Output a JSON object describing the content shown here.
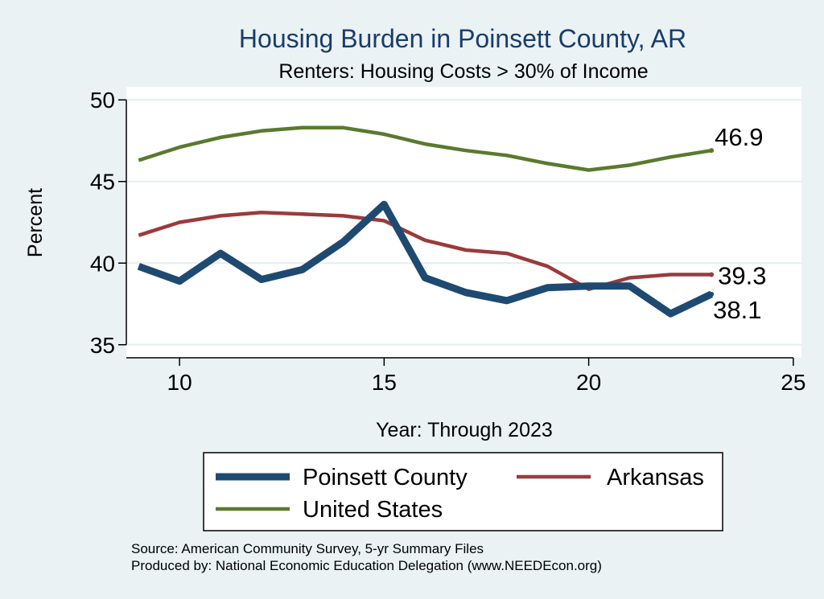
{
  "chart_data": {
    "type": "line",
    "title": "Housing Burden in Poinsett County, AR",
    "subtitle": "Renters: Housing Costs > 30% of Income",
    "xlabel": "Year: Through 2023",
    "ylabel": "Percent",
    "xlim": [
      8.7,
      25.2
    ],
    "ylim": [
      34.2,
      50.8
    ],
    "xticks": [
      10,
      15,
      20,
      25
    ],
    "yticks": [
      35,
      40,
      45,
      50
    ],
    "grid": true,
    "x": [
      9,
      10,
      11,
      12,
      13,
      14,
      15,
      16,
      17,
      18,
      19,
      20,
      21,
      22,
      23
    ],
    "series": [
      {
        "name": "Poinsett County",
        "color": "#1e4a72",
        "values": [
          39.8,
          38.9,
          40.6,
          39.0,
          39.6,
          41.3,
          43.6,
          39.1,
          38.2,
          37.7,
          38.5,
          38.6,
          38.6,
          36.9,
          38.1
        ],
        "end_label": "38.1"
      },
      {
        "name": "Arkansas",
        "color": "#9b3a3c",
        "values": [
          41.7,
          42.5,
          42.9,
          43.1,
          43.0,
          42.9,
          42.6,
          41.4,
          40.8,
          40.6,
          39.8,
          38.4,
          39.1,
          39.3,
          39.3
        ],
        "end_label": "39.3"
      },
      {
        "name": "United States",
        "color": "#5a7a2e",
        "values": [
          46.3,
          47.1,
          47.7,
          48.1,
          48.3,
          48.3,
          47.9,
          47.3,
          46.9,
          46.6,
          46.1,
          45.7,
          46.0,
          46.5,
          46.9
        ],
        "end_label": "46.9"
      }
    ],
    "legend_position": "bottom",
    "notes": [
      "Source: American Community Survey, 5-yr Summary Files",
      "Produced by: National Economic Education Delegation (www.NEEDEcon.org)"
    ]
  }
}
